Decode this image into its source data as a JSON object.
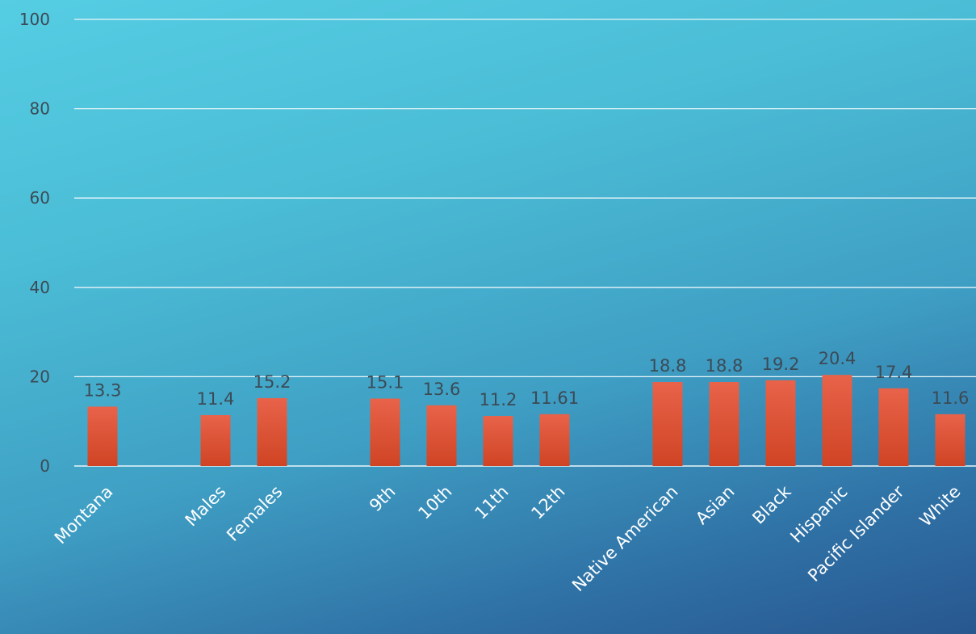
{
  "chart_data": {
    "type": "bar",
    "title": "",
    "xlabel": "",
    "ylabel": "",
    "ylim": [
      0,
      100
    ],
    "yticks": [
      0,
      20,
      40,
      60,
      80,
      100
    ],
    "grid": true,
    "legend": "none",
    "bar_color": "#e0553a",
    "categories": [
      "Montana",
      "Males",
      "Females",
      "9th",
      "10th",
      "11th",
      "12th",
      "Native American",
      "Asian",
      "Black",
      "Hispanic",
      "Pacific Islander",
      "White"
    ],
    "values": [
      13.3,
      11.4,
      15.2,
      15.1,
      13.6,
      11.2,
      11.61,
      18.8,
      18.8,
      19.2,
      20.4,
      17.4,
      11.6
    ],
    "value_labels": [
      "13.3",
      "11.4",
      "15.2",
      "15.1",
      "13.6",
      "11.2",
      "11.61",
      "18.8",
      "18.8",
      "19.2",
      "20.4",
      "17.4",
      "11.6"
    ]
  }
}
